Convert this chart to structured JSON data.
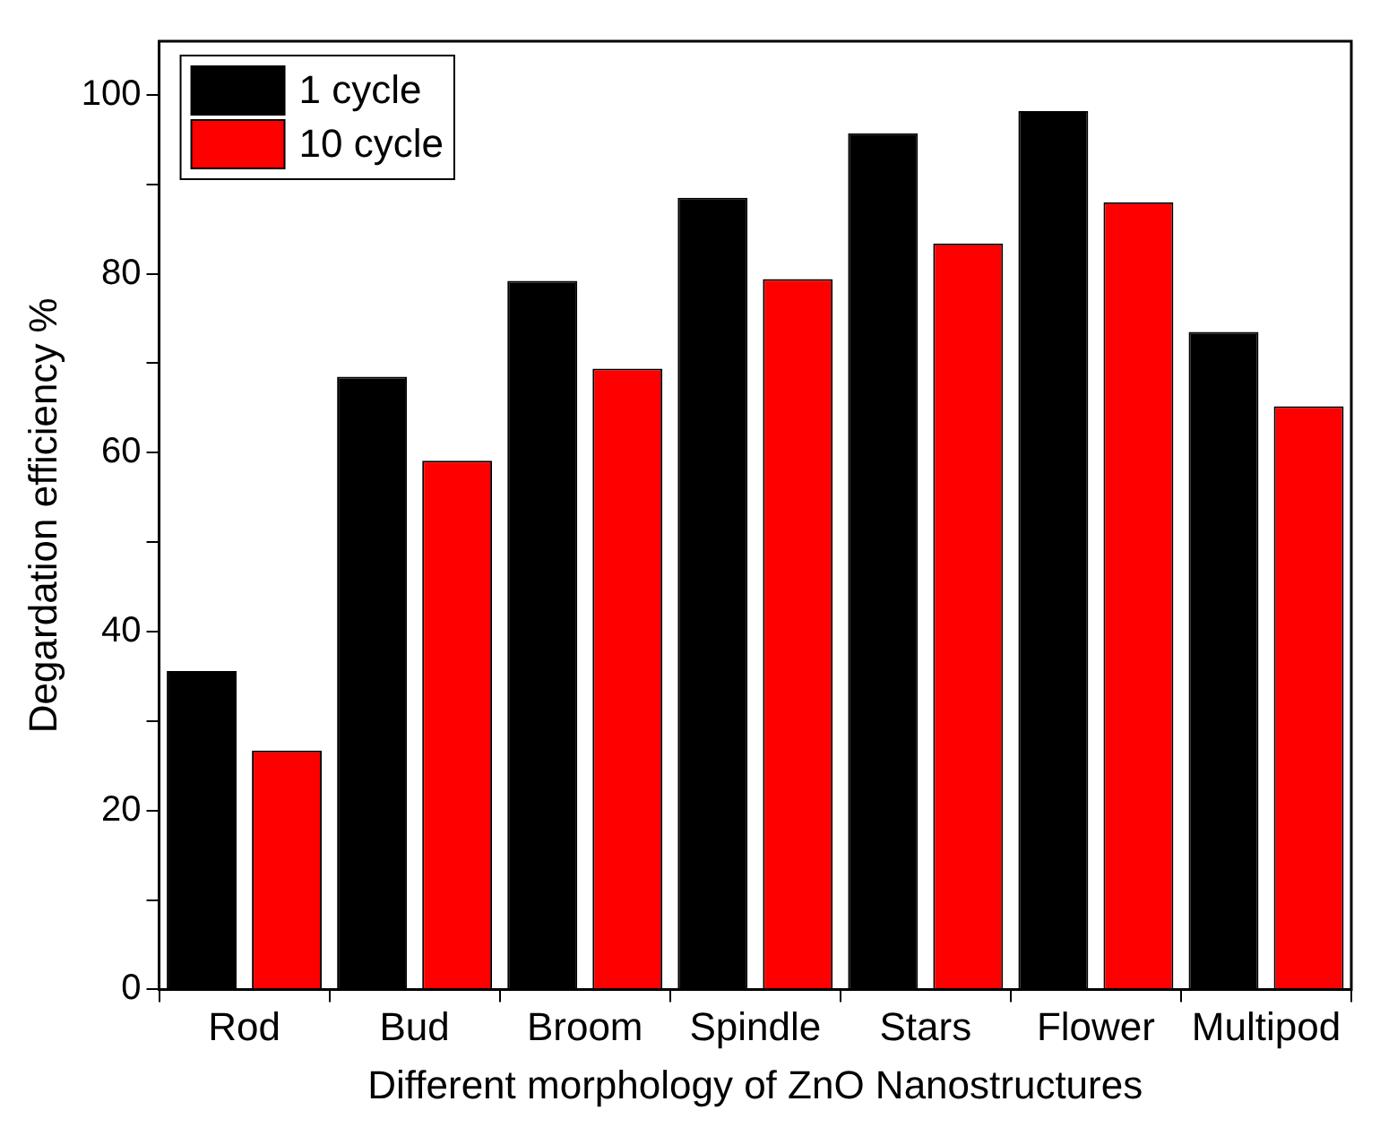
{
  "chart_data": {
    "type": "bar",
    "xlabel": "Different morphology of ZnO Nanostructures",
    "ylabel": "Degardation efficiency %",
    "categories": [
      "Rod",
      "Bud",
      "Broom",
      "Spindle",
      "Stars",
      "Flower",
      "Multipod"
    ],
    "series": [
      {
        "name": "1 cycle",
        "color": "#000000",
        "values": [
          35.6,
          68.5,
          79.2,
          88.5,
          95.7,
          98.2,
          73.5
        ]
      },
      {
        "name": "10 cycle",
        "color": "#ff0000",
        "values": [
          26.7,
          59.1,
          69.4,
          79.4,
          83.4,
          88.0,
          65.2
        ]
      }
    ],
    "ylim": [
      0,
      106
    ],
    "yticks": [
      0,
      {
        "value": 10,
        "label": null
      },
      20,
      {
        "value": 30,
        "label": null
      },
      40,
      {
        "value": 50,
        "label": null
      },
      60,
      {
        "value": 70,
        "label": null
      },
      80,
      {
        "value": 90,
        "label": null
      },
      100
    ],
    "grid": false,
    "legend": "top left"
  }
}
